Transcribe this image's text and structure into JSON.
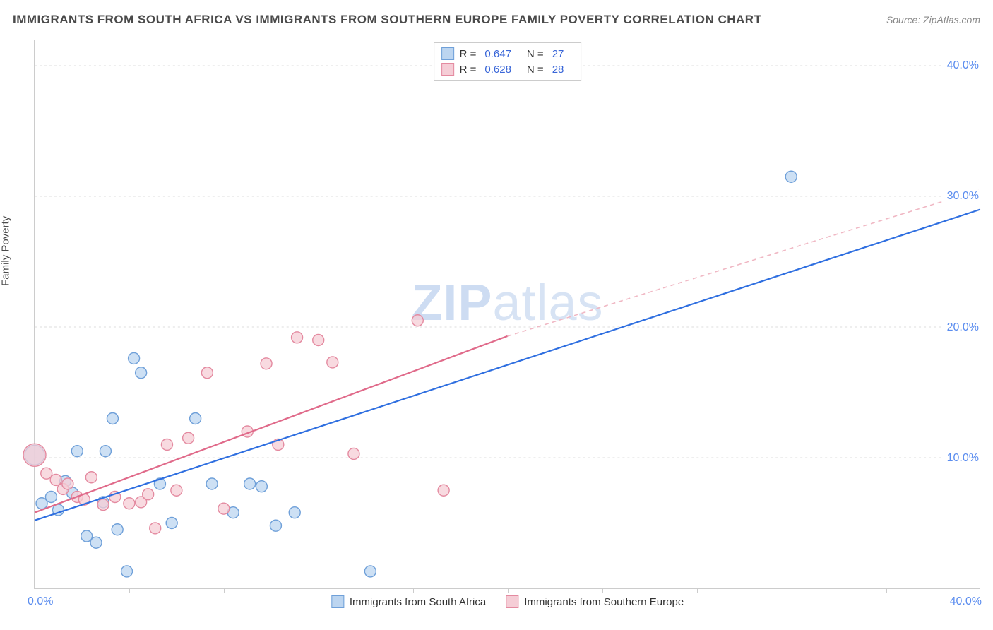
{
  "title": "IMMIGRANTS FROM SOUTH AFRICA VS IMMIGRANTS FROM SOUTHERN EUROPE FAMILY POVERTY CORRELATION CHART",
  "source_label": "Source: ZipAtlas.com",
  "y_axis_label": "Family Poverty",
  "watermark_a": "ZIP",
  "watermark_b": "atlas",
  "chart": {
    "type": "scatter",
    "xlim": [
      0,
      40
    ],
    "ylim": [
      0,
      42
    ],
    "x_tick_step": 4,
    "y_gridlines": [
      10,
      20,
      30,
      40
    ],
    "y_tick_labels": [
      "10.0%",
      "20.0%",
      "30.0%",
      "40.0%"
    ],
    "x_min_label": "0.0%",
    "x_max_label": "40.0%",
    "background_color": "#ffffff",
    "grid_color": "#dddddd",
    "axis_color": "#cccccc",
    "series": [
      {
        "name": "Immigrants from South Africa",
        "color_fill": "#bcd5f0",
        "color_stroke": "#6fa0d9",
        "marker_radius": 8,
        "r_label": "R =",
        "r_value": "0.647",
        "n_label": "N =",
        "n_value": "27",
        "regression": {
          "x1": 0,
          "y1": 5.2,
          "x2": 40,
          "y2": 29.0,
          "stroke": "#2f6fe0",
          "width": 2.2,
          "dash": ""
        },
        "points": [
          {
            "x": 0.0,
            "y": 10.2,
            "r": 14
          },
          {
            "x": 0.3,
            "y": 6.5
          },
          {
            "x": 0.7,
            "y": 7.0
          },
          {
            "x": 1.0,
            "y": 6.0
          },
          {
            "x": 1.3,
            "y": 8.2
          },
          {
            "x": 1.6,
            "y": 7.3
          },
          {
            "x": 1.8,
            "y": 10.5
          },
          {
            "x": 2.2,
            "y": 4.0
          },
          {
            "x": 2.6,
            "y": 3.5
          },
          {
            "x": 3.0,
            "y": 10.5
          },
          {
            "x": 3.3,
            "y": 13.0
          },
          {
            "x": 3.5,
            "y": 4.5
          },
          {
            "x": 3.9,
            "y": 1.3
          },
          {
            "x": 4.2,
            "y": 17.6
          },
          {
            "x": 4.5,
            "y": 16.5
          },
          {
            "x": 5.3,
            "y": 8.0
          },
          {
            "x": 6.8,
            "y": 13.0
          },
          {
            "x": 7.5,
            "y": 8.0
          },
          {
            "x": 8.4,
            "y": 5.8
          },
          {
            "x": 9.1,
            "y": 8.0
          },
          {
            "x": 9.6,
            "y": 7.8
          },
          {
            "x": 10.2,
            "y": 4.8
          },
          {
            "x": 11.0,
            "y": 5.8
          },
          {
            "x": 14.2,
            "y": 1.3
          },
          {
            "x": 5.8,
            "y": 5.0
          },
          {
            "x": 2.9,
            "y": 6.6
          },
          {
            "x": 32.0,
            "y": 31.5
          }
        ]
      },
      {
        "name": "Immigrants from Southern Europe",
        "color_fill": "#f5cdd6",
        "color_stroke": "#e48aa0",
        "marker_radius": 8,
        "r_label": "R =",
        "r_value": "0.628",
        "n_label": "N =",
        "n_value": "28",
        "regression_solid": {
          "x1": 0,
          "y1": 5.8,
          "x2": 20,
          "y2": 19.3,
          "stroke": "#e06a8a",
          "width": 2.2
        },
        "regression_dash": {
          "x1": 20,
          "y1": 19.3,
          "x2": 40,
          "y2": 30.5,
          "stroke": "#f0b8c4",
          "width": 1.6,
          "dash": "6,5"
        },
        "points": [
          {
            "x": 0.0,
            "y": 10.2,
            "r": 16
          },
          {
            "x": 0.5,
            "y": 8.8
          },
          {
            "x": 0.9,
            "y": 8.3
          },
          {
            "x": 1.2,
            "y": 7.6
          },
          {
            "x": 1.4,
            "y": 8.0
          },
          {
            "x": 1.8,
            "y": 7.0
          },
          {
            "x": 2.1,
            "y": 6.8
          },
          {
            "x": 2.4,
            "y": 8.5
          },
          {
            "x": 2.9,
            "y": 6.4
          },
          {
            "x": 3.4,
            "y": 7.0
          },
          {
            "x": 4.0,
            "y": 6.5
          },
          {
            "x": 4.5,
            "y": 6.6
          },
          {
            "x": 4.8,
            "y": 7.2
          },
          {
            "x": 5.1,
            "y": 4.6
          },
          {
            "x": 5.6,
            "y": 11.0
          },
          {
            "x": 6.0,
            "y": 7.5
          },
          {
            "x": 6.5,
            "y": 11.5
          },
          {
            "x": 7.3,
            "y": 16.5
          },
          {
            "x": 8.0,
            "y": 6.1
          },
          {
            "x": 9.0,
            "y": 12.0
          },
          {
            "x": 9.8,
            "y": 17.2
          },
          {
            "x": 10.3,
            "y": 11.0
          },
          {
            "x": 11.1,
            "y": 19.2
          },
          {
            "x": 12.0,
            "y": 19.0
          },
          {
            "x": 12.6,
            "y": 17.3
          },
          {
            "x": 13.5,
            "y": 10.3
          },
          {
            "x": 17.3,
            "y": 7.5
          },
          {
            "x": 16.2,
            "y": 20.5
          }
        ]
      }
    ]
  },
  "legend_bottom": {
    "items": [
      {
        "label": "Immigrants from South Africa",
        "fill": "#bcd5f0",
        "stroke": "#6fa0d9"
      },
      {
        "label": "Immigrants from Southern Europe",
        "fill": "#f5cdd6",
        "stroke": "#e48aa0"
      }
    ]
  }
}
